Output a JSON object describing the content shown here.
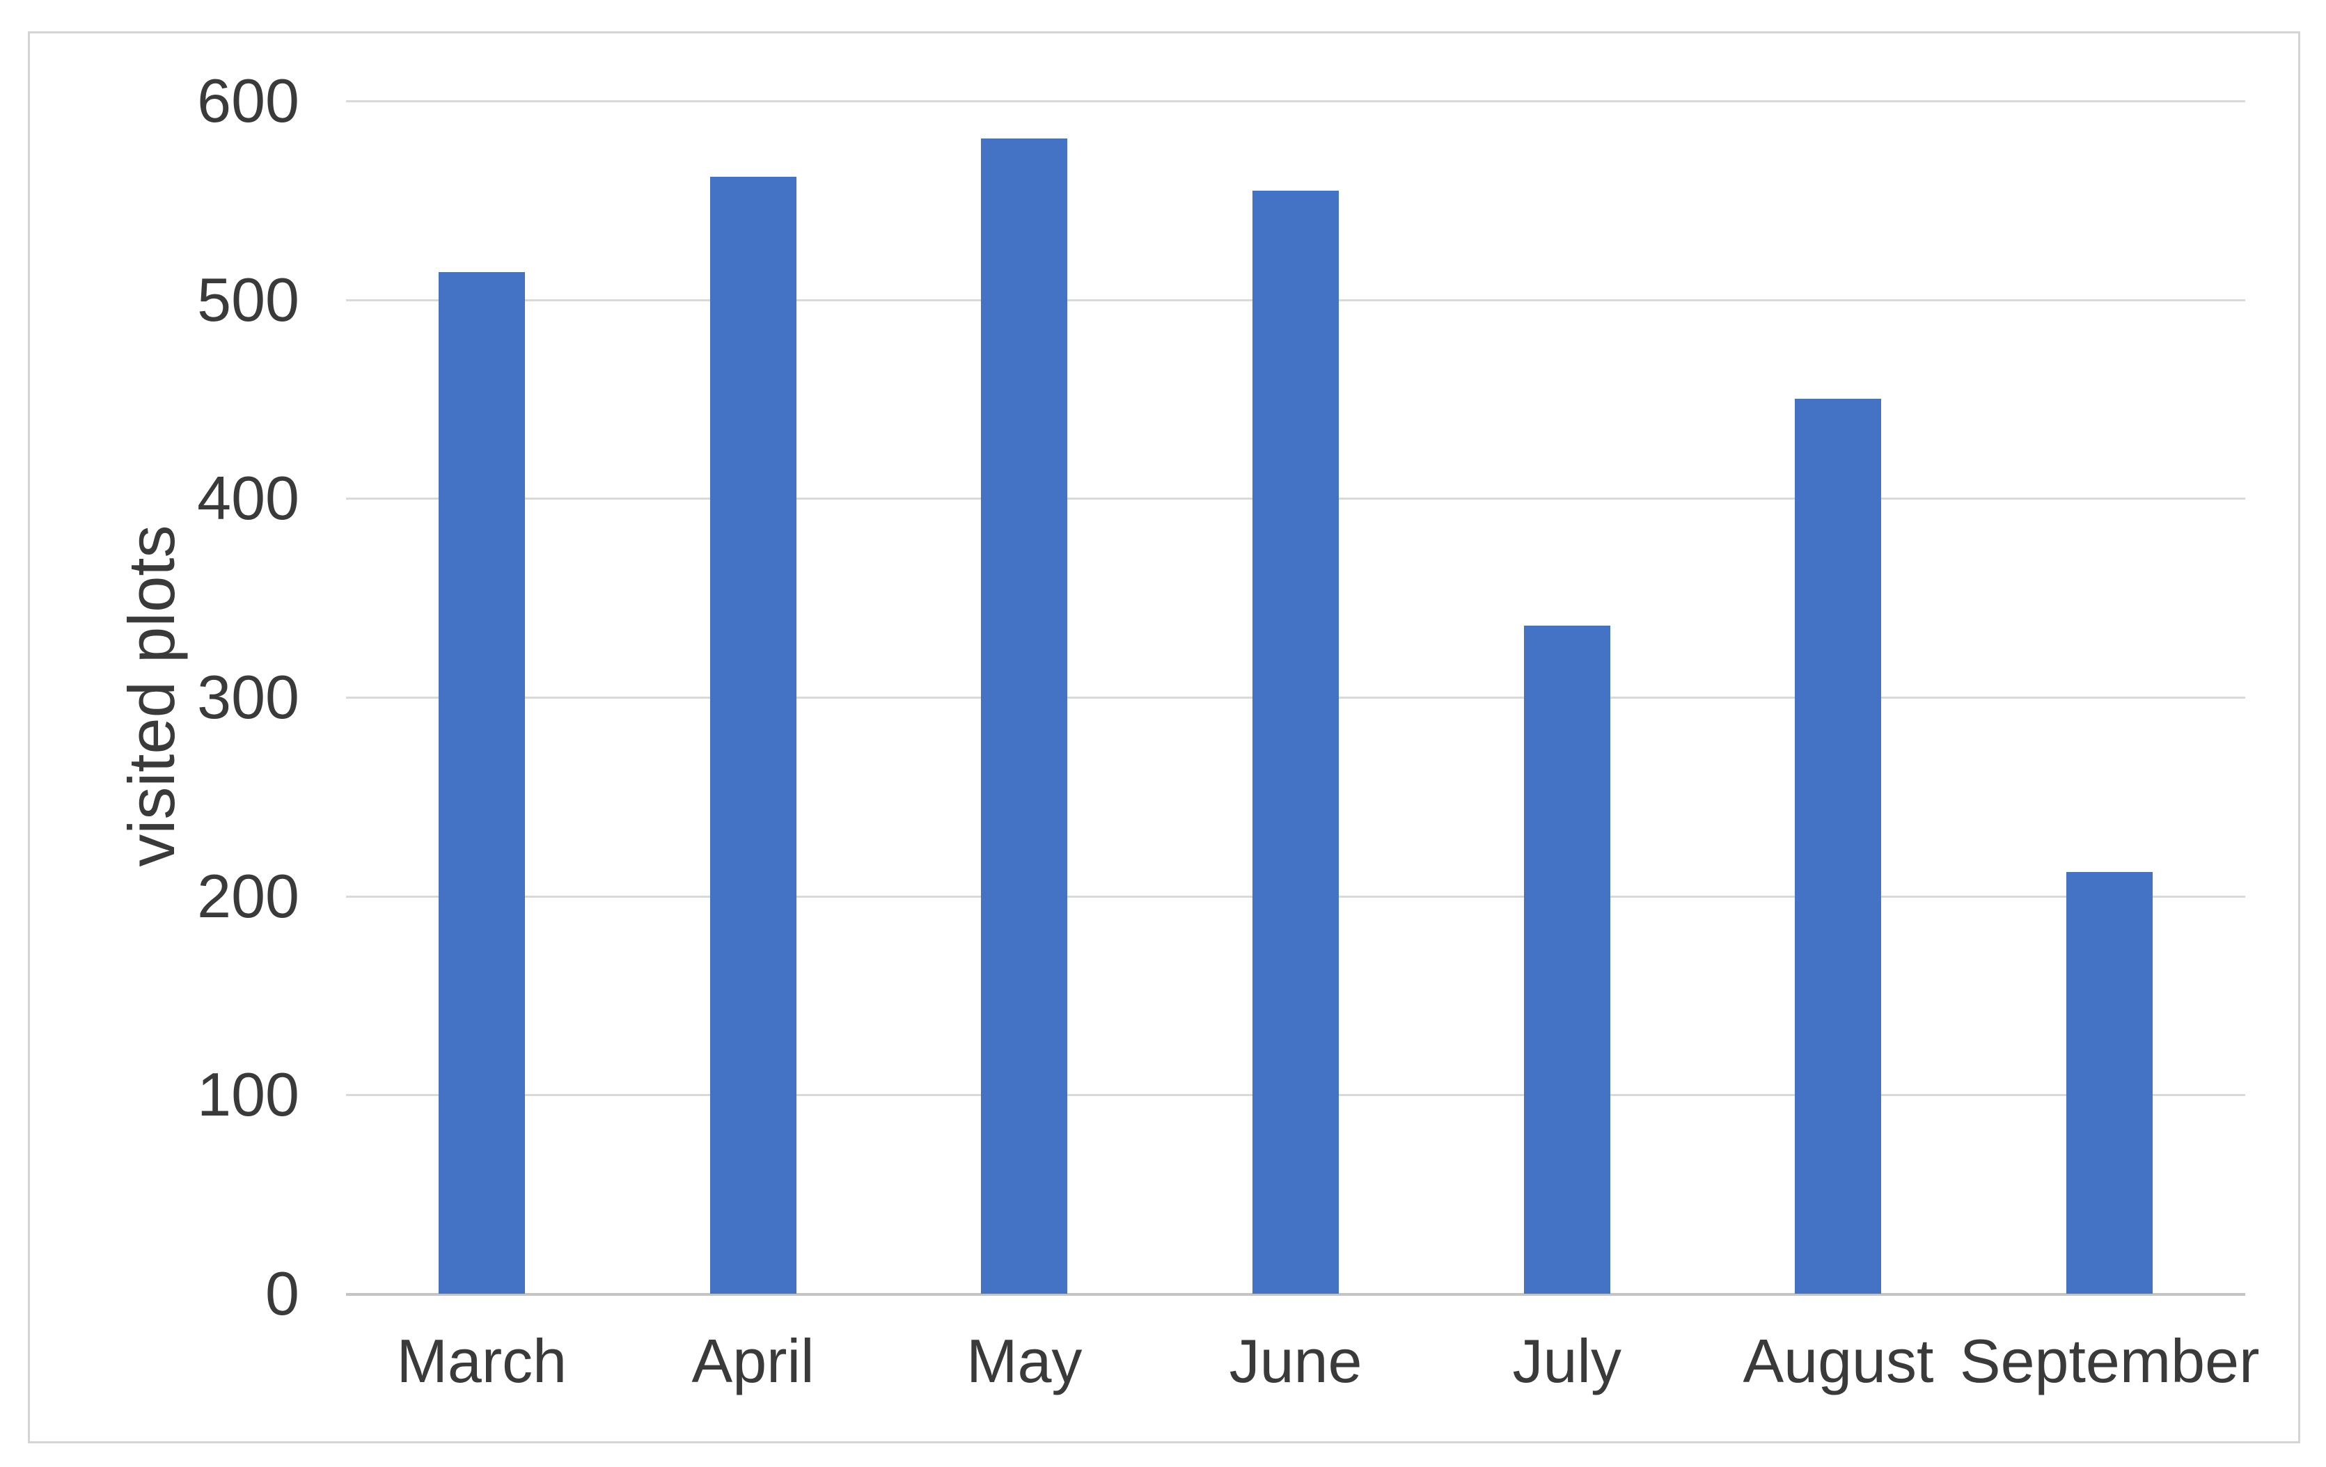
{
  "chart_data": {
    "type": "bar",
    "title": "",
    "xlabel": "",
    "ylabel": "visited plots",
    "categories": [
      "March",
      "April",
      "May",
      "June",
      "July",
      "August",
      "September"
    ],
    "values": [
      514,
      562,
      581,
      555,
      336,
      450,
      212
    ],
    "series_name": "visited plots",
    "ylim": [
      0,
      600
    ],
    "yticks": [
      0,
      100,
      200,
      300,
      400,
      500,
      600
    ],
    "grid": "horizontal",
    "legend": "none",
    "bar_color": "#4472C4"
  },
  "colors": {
    "bar": "#4472C4",
    "gridline": "#D9D9D9",
    "axis_line": "#C4C4C4",
    "text": "#3A3A3A",
    "frame_border": "#D4D4D4",
    "background": "#FFFFFF"
  }
}
